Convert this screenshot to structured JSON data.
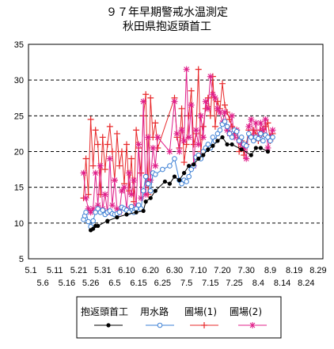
{
  "chart_data": {
    "type": "line",
    "title": "９７年早期警戒水温測定",
    "subtitle": "秋田県抱返頭首工",
    "ylim": [
      5,
      35
    ],
    "y_ticks": [
      5,
      10,
      15,
      20,
      25,
      30,
      35
    ],
    "grid": "horizontal-dashed",
    "legend_position": "bottom",
    "x_ticks_row1": [
      "5.1",
      "5.11",
      "5.21",
      "5.31",
      "6.10",
      "6.20",
      "6.30",
      "7.10",
      "7.20",
      "7.30",
      "8.9",
      "8.19",
      "8.29"
    ],
    "x_ticks_row2": [
      "5.6",
      "5.16",
      "5.26",
      "6.5",
      "6.15",
      "6.25",
      "7.5",
      "7.15",
      "7.25",
      "8.4",
      "8.14",
      "8.24"
    ],
    "series": [
      {
        "name": "抱返頭首工",
        "color": "#000000",
        "marker": "filled-circle",
        "x": [
          25,
          26,
          27,
          28,
          32,
          36,
          40,
          44,
          47,
          48,
          50,
          52,
          56,
          58,
          60,
          62,
          64,
          66,
          68,
          70,
          72,
          74,
          76,
          78,
          80,
          82,
          84,
          88,
          92,
          94,
          96,
          99
        ],
        "y": [
          9.0,
          9.2,
          9.6,
          9.6,
          10.3,
          10.8,
          11.2,
          11.5,
          11.7,
          13.0,
          13.5,
          14.5,
          15.8,
          15.5,
          16.5,
          16.0,
          17.0,
          18.0,
          18.2,
          19.0,
          19.5,
          20.3,
          20.8,
          21.5,
          22.0,
          21.0,
          21.0,
          20.3,
          19.5,
          20.5,
          20.5,
          20.0
        ]
      },
      {
        "name": "用水路",
        "color": "#3b7fd4",
        "marker": "open-circle",
        "x": [
          22,
          22.5,
          23,
          24,
          25,
          26,
          27,
          28,
          29,
          30,
          31,
          32,
          33,
          34,
          35,
          36,
          37,
          38,
          39,
          40,
          41,
          42,
          43,
          44,
          45,
          46,
          47,
          48,
          49,
          50,
          51,
          52,
          55,
          58,
          60,
          62,
          63,
          64,
          65,
          66,
          67,
          68,
          69,
          70,
          71,
          72,
          73,
          74,
          75,
          76,
          77,
          78,
          79,
          80,
          81,
          82,
          83,
          84,
          85,
          86,
          87,
          88,
          89,
          90,
          91,
          92,
          93,
          94,
          95,
          96,
          97,
          98,
          99,
          100,
          101
        ],
        "y": [
          10.5,
          11.0,
          11.5,
          10.2,
          9.5,
          10.3,
          11.5,
          12.0,
          11.5,
          11.8,
          11.2,
          11.5,
          11.7,
          11.3,
          11.2,
          11.3,
          11.5,
          12.2,
          12.0,
          11.8,
          11.5,
          12.3,
          11.5,
          12.0,
          12.5,
          12.0,
          14.5,
          16.5,
          15.5,
          14.5,
          17.0,
          16.8,
          17.5,
          18.0,
          19.0,
          16.0,
          15.5,
          16.0,
          15.8,
          16.5,
          17.5,
          18.0,
          19.2,
          19.5,
          19.0,
          20.0,
          20.5,
          21.0,
          20.5,
          22.0,
          21.5,
          22.5,
          23.0,
          23.8,
          24.2,
          23.5,
          22.5,
          22.0,
          23.0,
          22.8,
          21.5,
          22.0,
          21.0,
          20.8,
          22.5,
          22.0,
          21.5,
          22.0,
          21.8,
          22.5,
          21.5,
          22.3,
          22.0,
          21.5,
          22.0
        ]
      },
      {
        "name": "圃場(1)",
        "color": "#e8282a",
        "marker": "plus",
        "x": [
          22,
          23,
          24,
          25,
          26,
          27,
          28,
          29,
          30,
          31,
          32,
          33,
          34,
          35,
          36,
          37,
          38,
          39,
          40,
          41,
          42,
          43,
          44,
          45,
          46,
          47,
          48,
          49,
          50,
          51,
          52,
          53,
          60,
          61,
          62,
          63,
          64,
          65,
          66,
          67,
          68,
          69,
          70,
          71,
          72,
          73,
          74,
          75,
          76,
          77,
          78,
          79,
          80,
          81,
          82,
          83,
          84,
          85,
          86,
          87,
          88,
          89,
          90,
          91,
          92,
          93,
          94,
          95,
          96,
          97,
          98,
          99,
          100,
          101
        ],
        "y": [
          13.5,
          19.0,
          14.0,
          24.5,
          18.0,
          23.0,
          21.0,
          14.0,
          22.0,
          17.5,
          21.0,
          23.5,
          20.0,
          16.0,
          22.5,
          18.0,
          20.0,
          15.5,
          21.0,
          14.5,
          19.0,
          13.0,
          23.0,
          20.5,
          17.0,
          25.0,
          28.0,
          14.0,
          27.5,
          22.0,
          24.0,
          20.5,
          27.5,
          22.0,
          20.5,
          26.0,
          18.5,
          21.0,
          25.0,
          28.5,
          21.0,
          22.5,
          31.5,
          20.0,
          23.5,
          26.0,
          27.5,
          25.0,
          30.5,
          23.5,
          27.0,
          26.0,
          29.5,
          26.5,
          25.5,
          24.5,
          23.5,
          22.5,
          23.0,
          20.0,
          21.5,
          19.5,
          21.0,
          23.0,
          22.0,
          23.0,
          22.5,
          21.5,
          23.0,
          22.5,
          23.5,
          24.0,
          21.5,
          22.5
        ]
      },
      {
        "name": "圃場(2)",
        "color": "#e0208a",
        "marker": "star",
        "x": [
          22,
          23,
          24,
          25,
          26,
          27,
          28,
          29,
          30,
          31,
          32,
          33,
          34,
          35,
          36,
          37,
          38,
          39,
          40,
          41,
          42,
          43,
          44,
          45,
          46,
          47,
          48,
          49,
          50,
          51,
          52,
          53,
          58,
          60,
          61,
          62,
          63,
          64,
          65,
          66,
          67,
          68,
          69,
          70,
          71,
          72,
          73,
          74,
          75,
          76,
          77,
          78,
          79,
          80,
          81,
          82,
          83,
          84,
          85,
          86,
          87,
          88,
          89,
          90,
          91,
          92,
          93,
          94,
          95,
          96,
          97,
          98,
          99,
          100,
          101
        ],
        "y": [
          17.0,
          13.5,
          12.0,
          11.5,
          12.0,
          17.0,
          12.5,
          18.0,
          12.0,
          14.0,
          11.5,
          19.0,
          12.5,
          16.0,
          12.0,
          11.5,
          14.5,
          15.0,
          12.0,
          17.0,
          14.0,
          16.0,
          12.5,
          21.0,
          13.5,
          27.0,
          14.0,
          22.0,
          16.0,
          20.5,
          18.0,
          22.0,
          20.0,
          27.0,
          22.5,
          20.0,
          23.0,
          21.5,
          31.5,
          22.0,
          26.5,
          18.0,
          23.0,
          21.0,
          25.0,
          22.0,
          27.0,
          26.0,
          30.5,
          28.0,
          27.5,
          26.0,
          25.5,
          24.0,
          25.5,
          23.0,
          22.5,
          25.0,
          22.0,
          23.0,
          21.5,
          21.0,
          20.5,
          19.0,
          23.5,
          24.5,
          22.0,
          24.0,
          22.0,
          24.0,
          23.0,
          24.5,
          20.5,
          22.0,
          23.0
        ]
      }
    ]
  }
}
